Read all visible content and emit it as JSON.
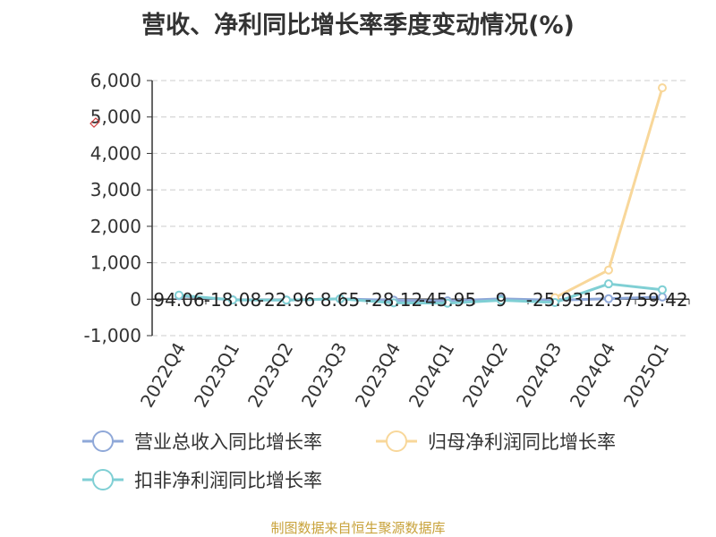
{
  "title": "营收、净利同比增长率季度变动情况(%)",
  "source": "制图数据来自恒生聚源数据库",
  "colors": {
    "source": "#c8a23a"
  },
  "chart_data": {
    "type": "line",
    "categories": [
      "2022Q4",
      "2023Q1",
      "2023Q2",
      "2023Q3",
      "2023Q4",
      "2024Q1",
      "2024Q2",
      "2024Q3",
      "2024Q4",
      "2025Q1"
    ],
    "ylim": [
      -1000,
      6000
    ],
    "yticks": [
      6000,
      5000,
      4000,
      3000,
      2000,
      1000,
      0,
      -1000
    ],
    "ytick_labels": [
      "6,000",
      "5,000",
      "4,000",
      "3,000",
      "2,000",
      "1,000",
      "0",
      "-1,000"
    ],
    "grid": true,
    "legend_position": "bottom",
    "series": [
      {
        "name": "营业总收入同比增长率",
        "color": "#8fa8d8",
        "values": [
          94.06,
          -18.08,
          -22.96,
          8.65,
          -28.12,
          -45.95,
          9,
          -25.93,
          12.37,
          59.42
        ]
      },
      {
        "name": "归母净利润同比增长率",
        "color": "#f8d79a",
        "values": [
          null,
          null,
          null,
          null,
          null,
          null,
          null,
          40,
          800,
          5800
        ]
      },
      {
        "name": "扣非净利润同比增长率",
        "color": "#7fcfd4",
        "values": [
          110,
          -20,
          -25,
          10,
          -100,
          -110,
          -30,
          -90,
          420,
          260
        ]
      }
    ],
    "data_labels": [
      "94.06",
      "-18.08",
      "-22.96",
      "8.65",
      "-28.12",
      "-45.95",
      "9",
      "-25.93",
      "12.37",
      "59.42"
    ]
  }
}
